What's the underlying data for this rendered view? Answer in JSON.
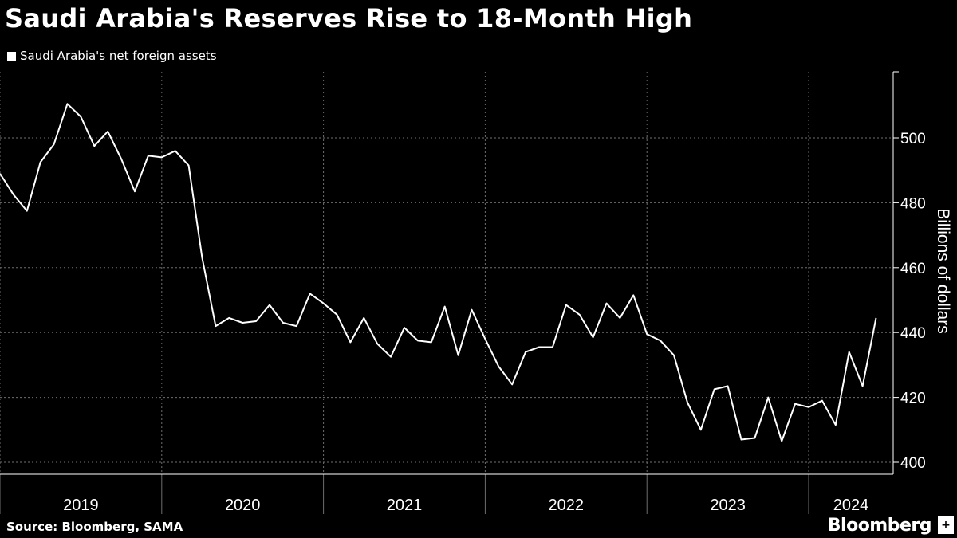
{
  "chart_data": {
    "type": "line",
    "title": "Saudi Arabia's Reserves Rise to 18-Month High",
    "legend": [
      "Saudi Arabia's net foreign assets"
    ],
    "ylabel": "Billions of dollars",
    "xlabel": "",
    "ylim": [
      398,
      520
    ],
    "yticks": [
      400,
      420,
      440,
      460,
      480,
      500
    ],
    "x_year_labels": [
      "2019",
      "2020",
      "2021",
      "2022",
      "2023",
      "2024"
    ],
    "x_start": "2019-01",
    "series": [
      {
        "name": "Saudi Arabia's net foreign assets",
        "values": [
          489,
          482.5,
          477.5,
          492.5,
          498,
          510.5,
          506.5,
          497.5,
          502,
          493.5,
          483.5,
          494.5,
          494,
          496,
          491.5,
          463,
          442,
          444.5,
          443,
          443.5,
          448.5,
          443,
          442,
          452,
          449,
          445.5,
          437,
          444.5,
          436.5,
          432.5,
          441.5,
          437.5,
          437,
          448,
          433,
          447,
          438,
          429.5,
          424,
          434,
          435.5,
          435.5,
          448.5,
          445.5,
          438.5,
          449,
          444.5,
          451.5,
          439.5,
          437.5,
          433,
          418.5,
          410,
          422.5,
          423.5,
          407,
          407.5,
          420,
          406.5,
          418,
          417,
          419,
          411.5,
          434,
          423.5,
          444.5
        ]
      }
    ]
  },
  "footer": {
    "source": "Source: Bloomberg, SAMA",
    "logo": "Bloomberg",
    "badge": "+"
  },
  "colors": {
    "background": "#000000",
    "line": "#ffffff",
    "grid": "#777777"
  }
}
